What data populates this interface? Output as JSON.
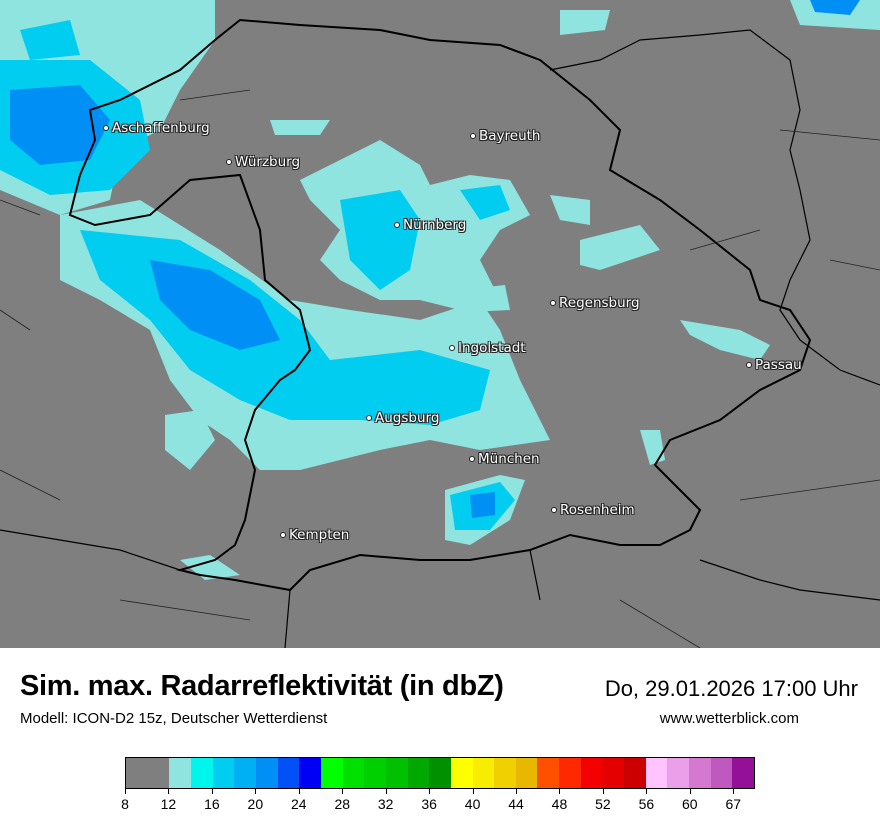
{
  "map": {
    "cities": [
      {
        "name": "Aschaffenburg"
      },
      {
        "name": "Würzburg"
      },
      {
        "name": "Bayreuth"
      },
      {
        "name": "Nürnberg"
      },
      {
        "name": "Regensburg"
      },
      {
        "name": "Ingolstadt"
      },
      {
        "name": "Passau"
      },
      {
        "name": "Augsburg"
      },
      {
        "name": "München"
      },
      {
        "name": "Rosenheim"
      },
      {
        "name": "Kempten"
      }
    ],
    "background_color": "#7f7f7f"
  },
  "footer": {
    "title": "Sim. max. Radarreflektivität (in dbZ)",
    "datetime": "Do, 29.01.2026 17:00 Uhr",
    "model": "Modell: ICON-D2 15z, Deutscher Wetterdienst",
    "website": "www.wetterblick.com"
  },
  "legend": {
    "tick_labels": [
      "8",
      "12",
      "16",
      "20",
      "24",
      "28",
      "32",
      "36",
      "40",
      "44",
      "48",
      "52",
      "56",
      "60",
      "67"
    ],
    "colors": [
      "#7f7f7f",
      "#90e4e0",
      "#00f5ec",
      "#00cdf0",
      "#00b0f5",
      "#0090f5",
      "#0050f5",
      "#0000f5",
      "#00ff00",
      "#00e000",
      "#00d000",
      "#00c000",
      "#00a800",
      "#009000",
      "#ffff00",
      "#f8ec00",
      "#f0d000",
      "#e8b800",
      "#ff5000",
      "#ff2800",
      "#f50000",
      "#e40000",
      "#cc0000",
      "#ffc4ff",
      "#eaa0e8",
      "#d478d0",
      "#bf58bf",
      "#951098"
    ]
  }
}
